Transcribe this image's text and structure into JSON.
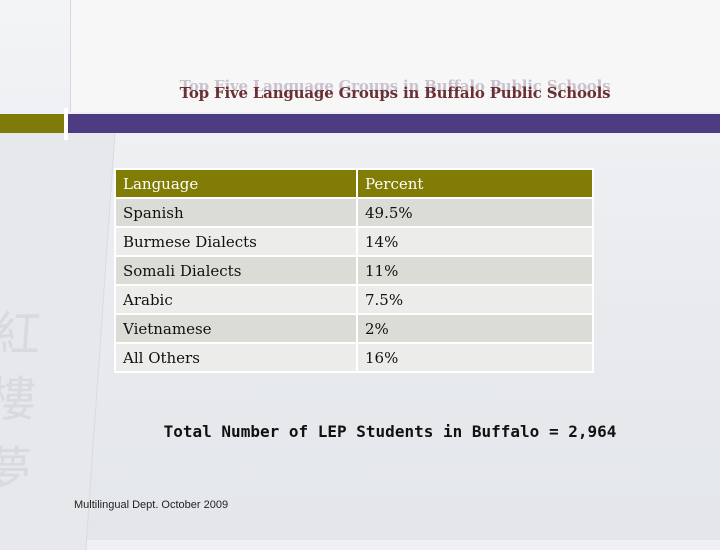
{
  "slide": {
    "title": "Top Five Language Groups in Buffalo Public Schools",
    "total": "Total Number of LEP Students in Buffalo = 2,964",
    "footer": "Multilingual Dept. October 2009"
  },
  "table": {
    "headers": [
      "Language",
      "Percent"
    ],
    "rows": [
      [
        "Spanish",
        "49.5%"
      ],
      [
        "Burmese Dialects",
        "14%"
      ],
      [
        "Somali Dialects",
        "11%"
      ],
      [
        "Arabic",
        "7.5%"
      ],
      [
        "Vietnamese",
        "2%"
      ],
      [
        "All Others",
        "16%"
      ]
    ]
  },
  "colors": {
    "header_bg": "#807c05",
    "accent_bar_left": "#7f7a09",
    "accent_bar_right": "#4e3c83",
    "title_text": "#6a2f32"
  }
}
